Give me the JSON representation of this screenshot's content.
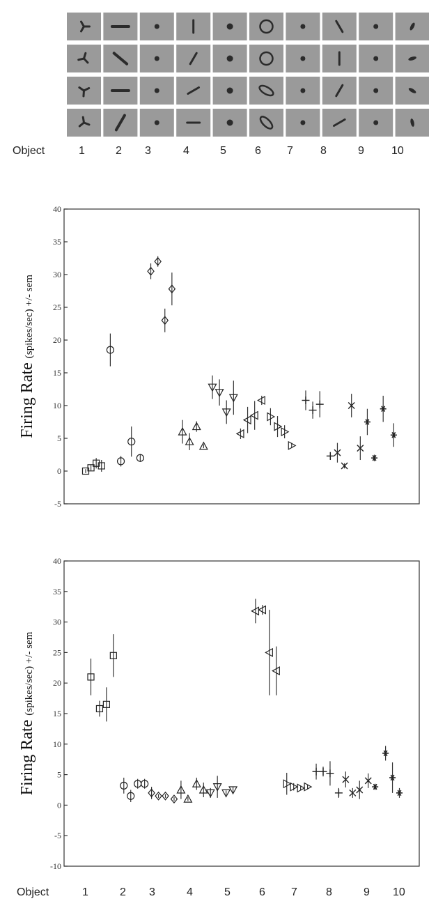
{
  "stimuli": {
    "rows": 4,
    "columns": 10,
    "tile_color": "#9a9a9a",
    "glyph_color": "#2b2b2b"
  },
  "object_axis": {
    "label": "Object",
    "objects": [
      "1",
      "2",
      "3",
      "4",
      "5",
      "6",
      "7",
      "8",
      "9",
      "10"
    ]
  },
  "chart_data": [
    {
      "type": "scatter",
      "title": "",
      "xlabel": "",
      "ylabel_main": "Firing Rate",
      "ylabel_detail": "(spikes/sec) +/- sem",
      "ylim": [
        -5,
        40
      ],
      "yticks": [
        "-5",
        "0",
        "5",
        "10",
        "15",
        "20",
        "25",
        "30",
        "35",
        "40"
      ],
      "series": [
        {
          "object": "1",
          "marker": "square",
          "x": [
            1.0,
            1.15,
            1.3,
            1.45
          ],
          "y": [
            0,
            0.5,
            1.2,
            0.8
          ],
          "sem": [
            0.3,
            0.4,
            0.8,
            0.9
          ]
        },
        {
          "object": "2",
          "marker": "circle",
          "x": [
            1.7,
            2.0,
            2.3,
            2.55
          ],
          "y": [
            18.5,
            1.5,
            4.5,
            2.0
          ],
          "sem": [
            2.5,
            0.8,
            2.3,
            0.6
          ]
        },
        {
          "object": "3",
          "marker": "diamond",
          "x": [
            2.85,
            3.05,
            3.25,
            3.45
          ],
          "y": [
            30.5,
            32.0,
            23.0,
            27.8
          ],
          "sem": [
            1.2,
            0.8,
            1.8,
            2.5
          ]
        },
        {
          "object": "4",
          "marker": "triangle-up",
          "x": [
            3.75,
            3.95,
            4.15,
            4.35
          ],
          "y": [
            6.0,
            4.5,
            6.8,
            3.8
          ],
          "sem": [
            1.8,
            1.3,
            0.8,
            0.3
          ]
        },
        {
          "object": "5",
          "marker": "triangle-down",
          "x": [
            4.6,
            4.8,
            5.0,
            5.2
          ],
          "y": [
            12.8,
            12.0,
            9.0,
            11.2
          ],
          "sem": [
            1.8,
            2.0,
            1.8,
            2.6
          ]
        },
        {
          "object": "6",
          "marker": "triangle-left",
          "x": [
            5.4,
            5.6,
            5.8,
            6.0
          ],
          "y": [
            5.7,
            7.8,
            8.5,
            10.8
          ],
          "sem": [
            0.8,
            2.0,
            2.2,
            0.7
          ]
        },
        {
          "object": "7",
          "marker": "triangle-right",
          "x": [
            6.25,
            6.45,
            6.65,
            6.85
          ],
          "y": [
            8.3,
            6.8,
            6.0,
            3.9
          ],
          "sem": [
            1.3,
            1.6,
            1.0,
            0.4
          ]
        },
        {
          "object": "8",
          "marker": "plus",
          "x": [
            7.25,
            7.45,
            7.65,
            7.95
          ],
          "y": [
            10.8,
            9.3,
            10.2,
            2.3
          ],
          "sem": [
            1.5,
            1.3,
            2.0,
            0.6
          ]
        },
        {
          "object": "9",
          "marker": "cross",
          "x": [
            8.15,
            8.35,
            8.55,
            8.8
          ],
          "y": [
            2.8,
            0.8,
            10.0,
            3.5
          ],
          "sem": [
            1.5,
            0.4,
            1.8,
            1.8
          ]
        },
        {
          "object": "10",
          "marker": "asterisk",
          "x": [
            9.0,
            9.2,
            9.45,
            9.75
          ],
          "y": [
            7.5,
            2.0,
            9.5,
            5.5
          ],
          "sem": [
            2.0,
            0.5,
            2.0,
            1.8
          ]
        }
      ]
    },
    {
      "type": "scatter",
      "title": "",
      "xlabel": "",
      "ylabel_main": "Firing Rate",
      "ylabel_detail": "(spikes/sec) +/- sem",
      "ylim": [
        -10,
        40
      ],
      "yticks": [
        "-10",
        "-5",
        "0",
        "5",
        "10",
        "15",
        "20",
        "25",
        "30",
        "35",
        "40"
      ],
      "series": [
        {
          "object": "1",
          "marker": "square",
          "x": [
            1.05,
            1.3,
            1.5,
            1.7
          ],
          "y": [
            21.0,
            15.8,
            16.5,
            24.5
          ],
          "sem": [
            3.0,
            1.3,
            2.8,
            3.5
          ]
        },
        {
          "object": "2",
          "marker": "circle",
          "x": [
            2.0,
            2.2,
            2.4,
            2.6
          ],
          "y": [
            3.2,
            1.5,
            3.5,
            3.5
          ],
          "sem": [
            1.3,
            1.0,
            0.8,
            0.8
          ]
        },
        {
          "object": "3",
          "marker": "diamond",
          "x": [
            2.8,
            3.0,
            3.2,
            3.45
          ],
          "y": [
            2.0,
            1.5,
            1.5,
            1.0
          ],
          "sem": [
            1.0,
            0.3,
            0.3,
            0.3
          ]
        },
        {
          "object": "4",
          "marker": "triangle-up",
          "x": [
            3.65,
            3.85,
            4.1,
            4.3
          ],
          "y": [
            2.5,
            1.0,
            3.5,
            2.5
          ],
          "sem": [
            1.5,
            0.3,
            1.0,
            1.2
          ]
        },
        {
          "object": "5",
          "marker": "triangle-down",
          "x": [
            4.5,
            4.7,
            4.95,
            5.15
          ],
          "y": [
            2.0,
            3.0,
            2.0,
            2.5
          ],
          "sem": [
            0.8,
            1.8,
            0.4,
            0.5
          ]
        },
        {
          "object": "6",
          "marker": "triangle-left",
          "x": [
            5.8,
            6.0,
            6.2,
            6.4
          ],
          "y": [
            31.8,
            32.0,
            25.0,
            22.0
          ],
          "sem": [
            2.0,
            0.8,
            7.0,
            4.0
          ]
        },
        {
          "object": "7",
          "marker": "triangle-right",
          "x": [
            6.7,
            6.9,
            7.1,
            7.3
          ],
          "y": [
            3.5,
            3.0,
            2.8,
            3.0
          ],
          "sem": [
            1.8,
            0.6,
            0.4,
            0.4
          ]
        },
        {
          "object": "8",
          "marker": "plus",
          "x": [
            7.55,
            7.75,
            7.95,
            8.2
          ],
          "y": [
            5.5,
            5.5,
            5.2,
            2.0
          ],
          "sem": [
            1.3,
            0.8,
            2.0,
            0.8
          ]
        },
        {
          "object": "9",
          "marker": "cross",
          "x": [
            8.4,
            8.6,
            8.8,
            9.05
          ],
          "y": [
            4.2,
            2.0,
            2.5,
            4.0
          ],
          "sem": [
            1.3,
            0.8,
            1.5,
            1.2
          ]
        },
        {
          "object": "10",
          "marker": "asterisk",
          "x": [
            9.25,
            9.55,
            9.75,
            9.95
          ],
          "y": [
            3.0,
            8.5,
            4.5,
            2.0
          ],
          "sem": [
            0.5,
            1.2,
            2.5,
            0.8
          ]
        }
      ]
    }
  ]
}
